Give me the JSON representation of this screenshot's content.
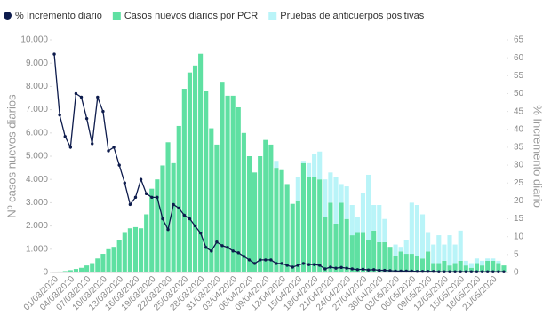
{
  "chart_data": {
    "type": "bar-line",
    "categories": [
      "01/03/2020",
      null,
      null,
      "04/03/2020",
      null,
      null,
      "07/03/2020",
      null,
      null,
      "10/03/2020",
      null,
      null,
      "13/03/2020",
      null,
      null,
      "16/03/2020",
      null,
      null,
      "19/03/2020",
      null,
      null,
      "22/03/2020",
      null,
      null,
      "25/03/2020",
      null,
      null,
      "28/03/2020",
      null,
      null,
      "31/03/2020",
      null,
      null,
      "03/04/2020",
      null,
      null,
      "06/04/2020",
      null,
      null,
      "09/04/2020",
      null,
      null,
      "12/04/2020",
      null,
      null,
      "15/04/2020",
      null,
      null,
      "18/04/2020",
      null,
      null,
      "21/04/2020",
      null,
      null,
      "24/04/2020",
      null,
      null,
      "27/04/2020",
      null,
      null,
      "30/04/2020",
      null,
      null,
      "03/05/2020",
      null,
      null,
      "06/05/2020",
      null,
      null,
      "09/05/2020",
      null,
      null,
      "12/05/2020",
      null,
      null,
      "15/05/2020",
      null,
      null,
      "18/05/2020",
      null,
      null,
      "21/05/2020",
      null,
      null
    ],
    "series": [
      {
        "name": "% Incremento diario",
        "type": "line",
        "axis": "y2",
        "color": "#0d1b4c",
        "values": [
          61,
          44,
          38,
          35,
          50,
          49,
          43,
          36,
          49,
          45,
          34,
          35,
          30,
          25,
          19,
          21,
          26,
          22,
          21,
          21,
          15,
          12,
          19,
          18,
          16,
          15,
          13,
          11,
          7,
          6,
          8.5,
          7.5,
          7,
          6,
          5.5,
          4.5,
          3.5,
          2.5,
          3.5,
          3.5,
          3.5,
          2.5,
          2.5,
          2,
          1.5,
          2,
          2.5,
          2.2,
          2.2,
          2,
          1,
          1.5,
          1.2,
          1.4,
          1.2,
          1,
          0.8,
          0.9,
          0.7,
          0.8,
          0.6,
          0.6,
          0.5,
          0.4,
          0.4,
          0.4,
          0.4,
          0.3,
          0.3,
          0.3,
          0.3,
          0.2,
          0.2,
          0.2,
          0.2,
          0.2,
          0.2,
          0.2,
          0.2,
          0.2,
          0.2,
          0.2,
          0.2,
          0.2
        ]
      },
      {
        "name": "Casos nuevos diarios por PCR",
        "type": "bar",
        "color": "#5fe0a2",
        "values": [
          30,
          40,
          60,
          100,
          150,
          200,
          300,
          400,
          600,
          800,
          1000,
          1100,
          1400,
          1700,
          1900,
          1950,
          1900,
          2500,
          3600,
          4000,
          4600,
          5600,
          4700,
          6300,
          7900,
          8600,
          8900,
          9400,
          7800,
          6200,
          5500,
          8200,
          7600,
          7600,
          7100,
          6000,
          5000,
          4300,
          5000,
          5700,
          5500,
          4500,
          4400,
          3800,
          2950,
          3100,
          4700,
          4100,
          4100,
          4000,
          2400,
          3000,
          2100,
          3000,
          2300,
          1600,
          1700,
          1700,
          1400,
          1800,
          1300,
          1300,
          1100,
          700,
          900,
          800,
          800,
          700,
          600,
          900,
          400,
          400,
          500,
          300,
          400,
          500,
          300,
          200,
          400,
          300,
          500,
          500,
          400,
          300
        ]
      },
      {
        "name": "Pruebas de anticuerpos positivas",
        "type": "bar",
        "color": "#b9f4f8",
        "values": [
          0,
          0,
          0,
          0,
          0,
          0,
          0,
          0,
          0,
          0,
          0,
          0,
          0,
          0,
          0,
          0,
          0,
          0,
          0,
          0,
          0,
          0,
          0,
          0,
          0,
          0,
          0,
          0,
          0,
          0,
          0,
          0,
          0,
          0,
          0,
          0,
          0,
          0,
          0,
          0,
          0,
          300,
          0,
          0,
          0,
          1000,
          100,
          600,
          1000,
          1200,
          1600,
          1300,
          2000,
          800,
          1400,
          1300,
          700,
          1700,
          2800,
          1100,
          1600,
          1000,
          0,
          500,
          200,
          600,
          2200,
          2200,
          1900,
          800,
          800,
          1200,
          700,
          1300,
          800,
          1300,
          200,
          200,
          200,
          200,
          100,
          100,
          100,
          0
        ]
      }
    ],
    "ylabel": "Nº casos nuevos diarios",
    "y2label": "% Incremento diario",
    "ylim": [
      0,
      10000
    ],
    "yticks": [
      0,
      {
        "value": 1000,
        "label": "1.000"
      },
      {
        "value": 2000,
        "label": "2.000"
      },
      {
        "value": 3000,
        "label": "3.000"
      },
      {
        "value": 4000,
        "label": "4.000"
      },
      {
        "value": 5000,
        "label": "5.000"
      },
      {
        "value": 6000,
        "label": "6.000"
      },
      {
        "value": 7000,
        "label": "7.000"
      },
      {
        "value": 8000,
        "label": "8.000"
      },
      {
        "value": 9000,
        "label": "9.000"
      },
      {
        "value": 10000,
        "label": "10.000"
      }
    ],
    "y2lim": [
      0,
      65
    ],
    "y2ticks": [
      0,
      5,
      10,
      15,
      20,
      25,
      30,
      35,
      40,
      45,
      50,
      55,
      60,
      65
    ],
    "stacked": true,
    "grid": false,
    "legend": "top"
  }
}
